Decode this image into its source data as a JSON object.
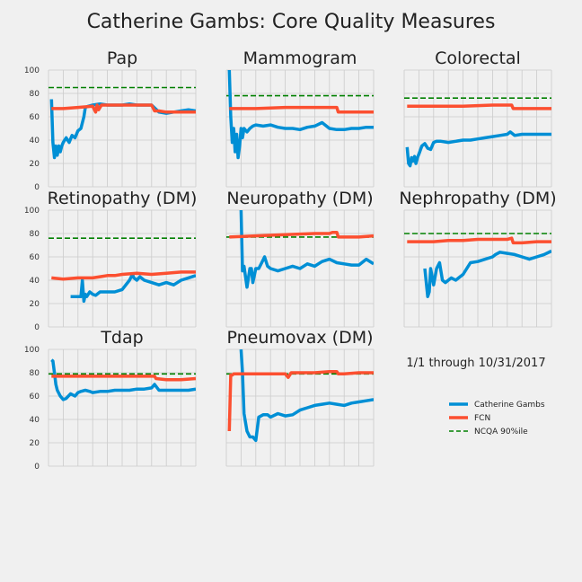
{
  "title": "Catherine Gambs: Core Quality Measures",
  "date_range": "1/1 through 10/31/2017",
  "legend": [
    "Catherine Gambs",
    "FCN",
    "NCQA 90%ile"
  ],
  "colors": {
    "provider": "#008fd5",
    "fcn": "#fc4f30",
    "ncqa": "#008000",
    "grid": "#cbcbcb",
    "bg": "#f0f0f0"
  },
  "y_ticks": [
    0,
    20,
    40,
    60,
    80,
    100
  ],
  "chart_data": [
    {
      "type": "line",
      "title": "Pap",
      "ylim": [
        0,
        100
      ],
      "xlim": [
        0,
        100
      ],
      "ncqa": 85,
      "series": [
        {
          "name": "Catherine Gambs",
          "x": [
            2,
            3,
            4,
            5,
            6,
            7,
            8,
            9,
            10,
            12,
            14,
            16,
            18,
            20,
            22,
            24,
            25,
            27,
            30,
            35,
            40,
            45,
            50,
            55,
            60,
            65,
            70,
            75,
            80,
            85,
            90,
            95,
            100
          ],
          "y": [
            75,
            38,
            25,
            35,
            27,
            35,
            30,
            35,
            38,
            42,
            38,
            44,
            42,
            48,
            50,
            60,
            68,
            69,
            70,
            71,
            70,
            70,
            70,
            71,
            70,
            70,
            70,
            64,
            63,
            64,
            65,
            66,
            65
          ]
        },
        {
          "name": "FCN",
          "x": [
            2,
            10,
            20,
            30,
            32,
            33,
            34,
            36,
            40,
            50,
            60,
            70,
            72,
            75,
            80,
            85,
            90,
            95,
            100
          ],
          "y": [
            67,
            67,
            68,
            69,
            64,
            70,
            66,
            70,
            70,
            70,
            70,
            70,
            65,
            65,
            64,
            64,
            64,
            64,
            64
          ]
        }
      ]
    },
    {
      "type": "line",
      "title": "Mammogram",
      "ylim": [
        0,
        100
      ],
      "xlim": [
        0,
        100
      ],
      "ncqa": 78,
      "series": [
        {
          "name": "Catherine Gambs",
          "x": [
            2,
            3,
            4,
            5,
            6,
            7,
            8,
            9,
            10,
            11,
            12,
            14,
            16,
            18,
            20,
            25,
            30,
            35,
            40,
            45,
            50,
            55,
            60,
            65,
            70,
            75,
            80,
            85,
            90,
            95,
            100
          ],
          "y": [
            100,
            60,
            38,
            50,
            30,
            45,
            25,
            35,
            50,
            42,
            50,
            47,
            50,
            52,
            53,
            52,
            53,
            51,
            50,
            50,
            49,
            51,
            52,
            55,
            50,
            49,
            49,
            50,
            50,
            51,
            51
          ]
        },
        {
          "name": "FCN",
          "x": [
            2,
            20,
            40,
            60,
            70,
            75,
            76,
            80,
            90,
            100
          ],
          "y": [
            67,
            67,
            68,
            68,
            68,
            68,
            64,
            64,
            64,
            64
          ]
        }
      ]
    },
    {
      "type": "line",
      "title": "Colorectal",
      "ylim": [
        0,
        100
      ],
      "xlim": [
        0,
        100
      ],
      "ncqa": 76,
      "series": [
        {
          "name": "Catherine Gambs",
          "x": [
            2,
            3,
            4,
            5,
            6,
            7,
            8,
            9,
            10,
            12,
            14,
            16,
            18,
            20,
            22,
            25,
            30,
            35,
            40,
            45,
            50,
            55,
            60,
            65,
            70,
            72,
            75,
            80,
            85,
            90,
            95,
            100
          ],
          "y": [
            34,
            20,
            18,
            25,
            22,
            26,
            20,
            25,
            28,
            35,
            37,
            33,
            32,
            38,
            39,
            39,
            38,
            39,
            40,
            40,
            41,
            42,
            43,
            44,
            45,
            47,
            44,
            45,
            45,
            45,
            45,
            45
          ]
        },
        {
          "name": "FCN",
          "x": [
            2,
            20,
            40,
            60,
            73,
            74,
            80,
            90,
            100
          ],
          "y": [
            69,
            69,
            69,
            70,
            70,
            67,
            67,
            67,
            67
          ]
        }
      ]
    },
    {
      "type": "line",
      "title": "Retinopathy (DM)",
      "ylim": [
        0,
        100
      ],
      "xlim": [
        0,
        100
      ],
      "ncqa": 76,
      "series": [
        {
          "name": "Catherine Gambs",
          "x": [
            15,
            17,
            20,
            22,
            23,
            24,
            25,
            26,
            28,
            30,
            32,
            35,
            40,
            45,
            50,
            55,
            57,
            58,
            60,
            62,
            65,
            70,
            75,
            80,
            85,
            90,
            95,
            100
          ],
          "y": [
            26,
            26,
            26,
            26,
            40,
            22,
            28,
            26,
            30,
            28,
            27,
            30,
            30,
            30,
            32,
            40,
            45,
            42,
            40,
            43,
            40,
            38,
            36,
            38,
            36,
            40,
            42,
            44
          ]
        },
        {
          "name": "FCN",
          "x": [
            2,
            10,
            20,
            30,
            35,
            40,
            45,
            50,
            60,
            70,
            80,
            90,
            100
          ],
          "y": [
            42,
            41,
            42,
            42,
            43,
            44,
            44,
            45,
            46,
            45,
            46,
            47,
            47
          ]
        }
      ]
    },
    {
      "type": "line",
      "title": "Neuropathy (DM)",
      "ylim": [
        0,
        100
      ],
      "xlim": [
        0,
        100
      ],
      "ncqa": 77,
      "series": [
        {
          "name": "Catherine Gambs",
          "x": [
            10,
            11,
            12,
            14,
            16,
            17,
            18,
            20,
            22,
            24,
            26,
            28,
            30,
            35,
            40,
            45,
            50,
            55,
            60,
            65,
            70,
            75,
            80,
            85,
            90,
            95,
            100
          ],
          "y": [
            100,
            48,
            52,
            34,
            50,
            50,
            38,
            50,
            50,
            55,
            60,
            52,
            50,
            48,
            50,
            52,
            50,
            54,
            52,
            56,
            58,
            55,
            54,
            53,
            53,
            58,
            54
          ]
        },
        {
          "name": "FCN",
          "x": [
            2,
            20,
            40,
            60,
            70,
            72,
            75,
            76,
            80,
            90,
            100
          ],
          "y": [
            77,
            78,
            79,
            80,
            80,
            81,
            81,
            77,
            77,
            77,
            78
          ]
        }
      ]
    },
    {
      "type": "line",
      "title": "Nephropathy (DM)",
      "ylim": [
        0,
        100
      ],
      "xlim": [
        0,
        100
      ],
      "ncqa": 80,
      "series": [
        {
          "name": "Catherine Gambs",
          "x": [
            14,
            16,
            17,
            18,
            20,
            22,
            24,
            26,
            28,
            30,
            32,
            35,
            40,
            45,
            50,
            55,
            60,
            62,
            65,
            70,
            75,
            80,
            85,
            90,
            95,
            100
          ],
          "y": [
            50,
            26,
            30,
            50,
            36,
            50,
            55,
            40,
            38,
            40,
            42,
            40,
            45,
            55,
            56,
            58,
            60,
            62,
            64,
            63,
            62,
            60,
            58,
            60,
            62,
            65
          ]
        },
        {
          "name": "FCN",
          "x": [
            2,
            10,
            20,
            30,
            40,
            50,
            60,
            70,
            73,
            74,
            80,
            90,
            100
          ],
          "y": [
            73,
            73,
            73,
            74,
            74,
            75,
            75,
            75,
            76,
            72,
            72,
            73,
            73
          ]
        }
      ]
    },
    {
      "type": "line",
      "title": "Tdap",
      "ylim": [
        0,
        100
      ],
      "xlim": [
        0,
        100
      ],
      "ncqa": 79,
      "series": [
        {
          "name": "Catherine Gambs",
          "x": [
            2,
            3,
            4,
            5,
            6,
            8,
            10,
            12,
            15,
            18,
            20,
            22,
            25,
            28,
            30,
            35,
            40,
            45,
            50,
            55,
            60,
            65,
            70,
            72,
            75,
            80,
            85,
            90,
            95,
            100
          ],
          "y": [
            91,
            90,
            80,
            70,
            65,
            60,
            57,
            58,
            62,
            60,
            63,
            64,
            65,
            64,
            63,
            64,
            64,
            65,
            65,
            65,
            66,
            66,
            67,
            70,
            65,
            65,
            65,
            65,
            65,
            66
          ]
        },
        {
          "name": "FCN",
          "x": [
            2,
            20,
            40,
            60,
            70,
            72,
            73,
            80,
            90,
            100
          ],
          "y": [
            77,
            77,
            77,
            77,
            77,
            77,
            75,
            74,
            74,
            75
          ]
        }
      ]
    },
    {
      "type": "line",
      "title": "Pneumovax (DM)",
      "ylim": [
        0,
        100
      ],
      "xlim": [
        0,
        100
      ],
      "ncqa": 79,
      "series": [
        {
          "name": "Catherine Gambs",
          "x": [
            10,
            11,
            12,
            14,
            16,
            18,
            20,
            22,
            25,
            28,
            30,
            35,
            40,
            45,
            50,
            55,
            60,
            65,
            70,
            75,
            80,
            85,
            90,
            95,
            100
          ],
          "y": [
            100,
            80,
            45,
            30,
            25,
            25,
            22,
            42,
            44,
            44,
            42,
            45,
            43,
            44,
            48,
            50,
            52,
            53,
            54,
            53,
            52,
            54,
            55,
            56,
            57
          ]
        },
        {
          "name": "FCN",
          "x": [
            2,
            3,
            4,
            5,
            10,
            20,
            30,
            40,
            42,
            44,
            50,
            60,
            70,
            75,
            76,
            80,
            90,
            100
          ],
          "y": [
            30,
            78,
            78,
            79,
            79,
            79,
            79,
            79,
            76,
            80,
            80,
            80,
            81,
            81,
            79,
            79,
            80,
            80
          ]
        }
      ]
    }
  ]
}
